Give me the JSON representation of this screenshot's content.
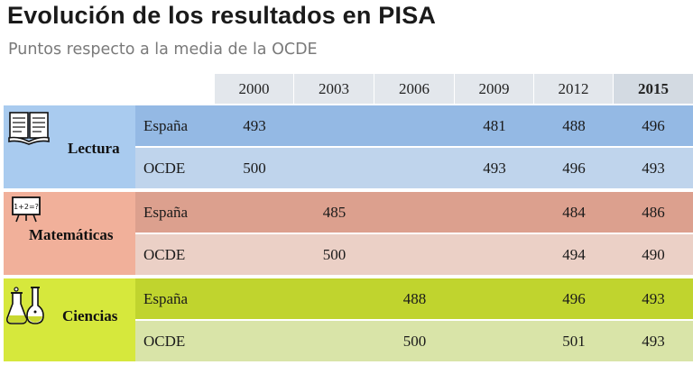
{
  "title": "Evolución de los resultados en PISA",
  "subtitle": "Puntos respecto a la media de la OCDE",
  "chart_data": {
    "type": "table",
    "title": "Evolución de los resultados en PISA",
    "subtitle": "Puntos respecto a la media de la OCDE",
    "columns": [
      "2000",
      "2003",
      "2006",
      "2009",
      "2012",
      "2015"
    ],
    "groups": [
      {
        "name": "Lectura",
        "icon": "book-icon",
        "rows": [
          {
            "label": "España",
            "values": [
              "493",
              "",
              "",
              "481",
              "488",
              "496"
            ]
          },
          {
            "label": "OCDE",
            "values": [
              "500",
              "",
              "",
              "493",
              "496",
              "493"
            ]
          }
        ]
      },
      {
        "name": "Matemáticas",
        "icon": "blackboard-icon",
        "rows": [
          {
            "label": "España",
            "values": [
              "",
              "485",
              "",
              "",
              "484",
              "486"
            ]
          },
          {
            "label": "OCDE",
            "values": [
              "",
              "500",
              "",
              "",
              "494",
              "490"
            ]
          }
        ]
      },
      {
        "name": "Ciencias",
        "icon": "flask-icon",
        "rows": [
          {
            "label": "España",
            "values": [
              "",
              "",
              "488",
              "",
              "496",
              "493"
            ]
          },
          {
            "label": "OCDE",
            "values": [
              "",
              "",
              "500",
              "",
              "501",
              "493"
            ]
          }
        ]
      }
    ]
  },
  "colors": {
    "header_bg": "#e3e7ec",
    "header_last_bg": "#d3dae2",
    "lectura_label": "#a9cbef",
    "lectura_espana": "#94b9e4",
    "lectura_ocde": "#bfd4ec",
    "matematicas_label": "#f1b09a",
    "matematicas_espana": "#dca08e",
    "matematicas_ocde": "#ebd0c6",
    "ciencias_label": "#d6e83c",
    "ciencias_espana": "#c0d42e",
    "ciencias_ocde": "#d9e4a8"
  }
}
